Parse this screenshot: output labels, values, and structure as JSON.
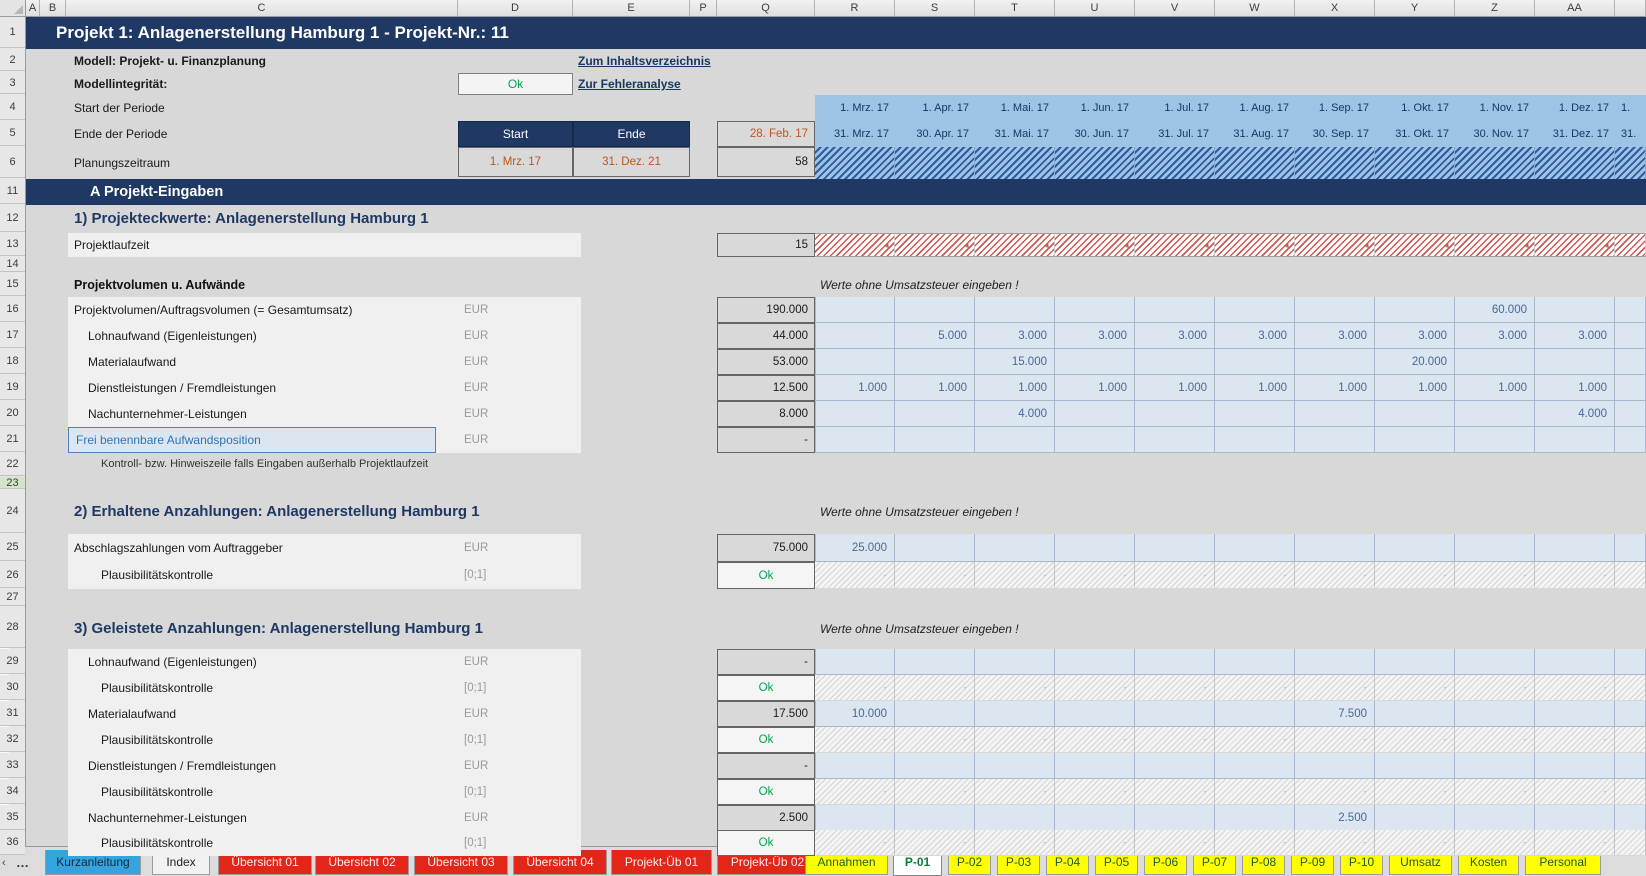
{
  "sheet": {
    "title": "Projekt 1: Anlagenerstellung Hamburg 1 - Projekt-Nr.: 11",
    "column_letters": [
      "A",
      "B",
      "C",
      "D",
      "E",
      "P",
      "Q",
      "R",
      "S",
      "T",
      "U",
      "V",
      "W",
      "X",
      "Y",
      "Z",
      "AA"
    ],
    "row_numbers": [
      "1",
      "2",
      "3",
      "4",
      "5",
      "6",
      "11",
      "12",
      "13",
      "14",
      "15",
      "16",
      "17",
      "18",
      "19",
      "20",
      "21",
      "22",
      "23",
      "24",
      "25",
      "26",
      "27",
      "28",
      "29",
      "30",
      "31",
      "32",
      "33",
      "34",
      "35",
      "36"
    ]
  },
  "info": {
    "model_label": "Modell: Projekt- u. Finanzplanung",
    "integrity_label": "Modellintegrität:",
    "integrity_value": "Ok",
    "link_toc": "Zum Inhaltsverzeichnis",
    "link_error": "Zur Fehleranalyse",
    "start_period_label": "Start der Periode",
    "end_period_label": "Ende der Periode",
    "planning_label": "Planungszeitraum",
    "start_header": "Start",
    "end_header": "Ende",
    "start_value": "1. Mrz. 17",
    "end_value": "31. Dez. 21"
  },
  "calendar": {
    "prev_period_end": "28. Feb. 17",
    "period_count": "58",
    "month_starts": [
      "1. Mrz. 17",
      "1. Apr. 17",
      "1. Mai. 17",
      "1. Jun. 17",
      "1. Jul. 17",
      "1. Aug. 17",
      "1. Sep. 17",
      "1. Okt. 17",
      "1. Nov. 17",
      "1. Dez. 17"
    ],
    "month_ends": [
      "31. Mrz. 17",
      "30. Apr. 17",
      "31. Mai. 17",
      "30. Jun. 17",
      "31. Jul. 17",
      "31. Aug. 17",
      "30. Sep. 17",
      "31. Okt. 17",
      "30. Nov. 17",
      "31. Dez. 17"
    ],
    "overflow_start": "1.",
    "overflow_end": "31."
  },
  "section_bar": "A  Projekt-Eingaben",
  "headings": {
    "h1": "1) Projekteckwerte: Anlagenerstellung Hamburg 1",
    "h2": "2) Erhaltene Anzahlungen: Anlagenerstellung Hamburg 1",
    "h3": "3) Geleistete Anzahlungen: Anlagenerstellung Hamburg 1",
    "subhead": "Projektvolumen u. Aufwände",
    "note": "Werte ohne Umsatzsteuer eingeben !",
    "control_note": "Kontroll- bzw. Hinweiszeile falls Eingaben außerhalb Projektlaufzeit"
  },
  "grid_rows": [
    {
      "row": "13",
      "type": "number",
      "label": "Projektlaufzeit",
      "indent": 0,
      "unit": "",
      "total": "15",
      "hatch": "red",
      "cells": {}
    },
    {
      "row": "16",
      "type": "number",
      "label": "Projektvolumen/Auftragsvolumen (= Gesamtumsatz)",
      "indent": 0,
      "unit": "EUR",
      "total": "190.000",
      "cells": {
        "Z": "60.000"
      }
    },
    {
      "row": "17",
      "type": "number",
      "label": "Lohnaufwand (Eigenleistungen)",
      "indent": 1,
      "unit": "EUR",
      "total": "44.000",
      "cells": {
        "S": "5.000",
        "T": "3.000",
        "U": "3.000",
        "V": "3.000",
        "W": "3.000",
        "X": "3.000",
        "Y": "3.000",
        "Z": "3.000",
        "AA": "3.000"
      }
    },
    {
      "row": "18",
      "type": "number",
      "label": "Materialaufwand",
      "indent": 1,
      "unit": "EUR",
      "total": "53.000",
      "cells": {
        "T": "15.000",
        "Y": "20.000"
      }
    },
    {
      "row": "19",
      "type": "number",
      "label": "Dienstleistungen / Fremdleistungen",
      "indent": 1,
      "unit": "EUR",
      "total": "12.500",
      "cells": {
        "R": "1.000",
        "S": "1.000",
        "T": "1.000",
        "U": "1.000",
        "V": "1.000",
        "W": "1.000",
        "X": "1.000",
        "Y": "1.000",
        "Z": "1.000",
        "AA": "1.000"
      }
    },
    {
      "row": "20",
      "type": "number",
      "label": "Nachunternehmer-Leistungen",
      "indent": 1,
      "unit": "EUR",
      "total": "8.000",
      "cells": {
        "T": "4.000",
        "AA": "4.000"
      }
    },
    {
      "row": "21",
      "type": "free",
      "label": "Frei benennbare Aufwandsposition",
      "indent": 1,
      "unit": "EUR",
      "total": "-",
      "cells": {}
    },
    {
      "row": "25",
      "type": "number",
      "label": "Abschlagszahlungen vom Auftraggeber",
      "indent": 0,
      "unit": "EUR",
      "total": "75.000",
      "cells": {
        "R": "25.000"
      }
    },
    {
      "row": "26",
      "type": "check",
      "label": "Plausibilitätskontrolle",
      "unit": "[0;1]",
      "total": "Ok"
    },
    {
      "row": "29",
      "type": "number",
      "label": "Lohnaufwand (Eigenleistungen)",
      "indent": 1,
      "unit": "EUR",
      "total": "-",
      "cells": {}
    },
    {
      "row": "30",
      "type": "check",
      "label": "Plausibilitätskontrolle",
      "unit": "[0;1]",
      "total": "Ok"
    },
    {
      "row": "31",
      "type": "number",
      "label": "Materialaufwand",
      "indent": 1,
      "unit": "EUR",
      "total": "17.500",
      "cells": {
        "R": "10.000",
        "X": "7.500"
      }
    },
    {
      "row": "32",
      "type": "check",
      "label": "Plausibilitätskontrolle",
      "unit": "[0;1]",
      "total": "Ok"
    },
    {
      "row": "33",
      "type": "number",
      "label": "Dienstleistungen / Fremdleistungen",
      "indent": 1,
      "unit": "EUR",
      "total": "-",
      "cells": {}
    },
    {
      "row": "34",
      "type": "check",
      "label": "Plausibilitätskontrolle",
      "unit": "[0;1]",
      "total": "Ok"
    },
    {
      "row": "35",
      "type": "number",
      "label": "Nachunternehmer-Leistungen",
      "indent": 1,
      "unit": "EUR",
      "total": "2.500",
      "cells": {
        "X": "2.500"
      }
    },
    {
      "row": "36",
      "type": "check",
      "label": "Plausibilitätskontrolle",
      "unit": "[0;1]",
      "total": "Ok"
    }
  ],
  "tabs": {
    "ellipsis": "…",
    "nav_left": "‹",
    "items": [
      {
        "label": "Kurzanleitung",
        "style": "blue"
      },
      {
        "label": "Index",
        "style": "light"
      },
      {
        "label": "Übersicht 01",
        "style": "red"
      },
      {
        "label": "Übersicht 02",
        "style": "red"
      },
      {
        "label": "Übersicht 03",
        "style": "red"
      },
      {
        "label": "Übersicht 04",
        "style": "red"
      },
      {
        "label": "Projekt-Üb 01",
        "style": "red"
      },
      {
        "label": "Projekt-Üb 02",
        "style": "red"
      },
      {
        "label": "Annahmen",
        "style": "yellow"
      },
      {
        "label": "P-01",
        "style": "active"
      },
      {
        "label": "P-02",
        "style": "yellow"
      },
      {
        "label": "P-03",
        "style": "yellow"
      },
      {
        "label": "P-04",
        "style": "yellow"
      },
      {
        "label": "P-05",
        "style": "yellow"
      },
      {
        "label": "P-06",
        "style": "yellow"
      },
      {
        "label": "P-07",
        "style": "yellow"
      },
      {
        "label": "P-08",
        "style": "yellow"
      },
      {
        "label": "P-09",
        "style": "yellow"
      },
      {
        "label": "P-10",
        "style": "yellow"
      },
      {
        "label": "Umsatz",
        "style": "yellow"
      },
      {
        "label": "Kosten",
        "style": "yellow"
      },
      {
        "label": "Personal",
        "style": "yellow"
      }
    ]
  },
  "colors": {
    "navy": "#1f3864",
    "accent_orange": "#c0561a",
    "ok_green": "#00a550",
    "cell_blue": "#dce6f1",
    "date_blue": "#9dc3e6",
    "tab_red": "#e3261a",
    "tab_yellow": "#ffff00",
    "tab_blue": "#35a3dc",
    "active_tab_green": "#0b7c3d"
  }
}
